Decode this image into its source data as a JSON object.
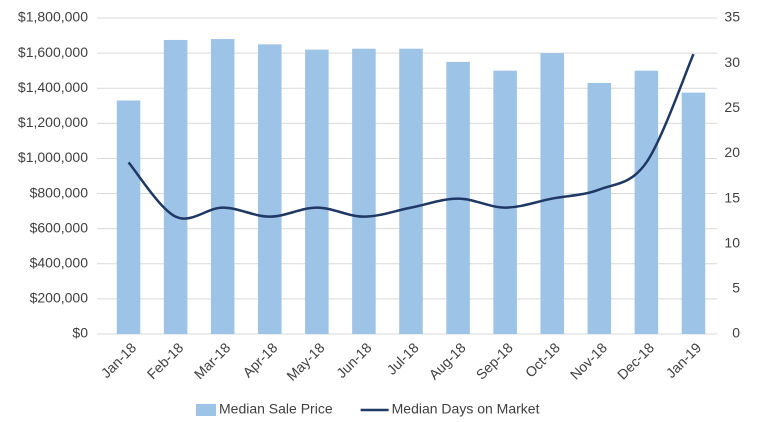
{
  "chart_data": {
    "type": "bar",
    "categories": [
      "Jan-18",
      "Feb-18",
      "Mar-18",
      "Apr-18",
      "May-18",
      "Jun-18",
      "Jul-18",
      "Aug-18",
      "Sep-18",
      "Oct-18",
      "Nov-18",
      "Dec-18",
      "Jan-19"
    ],
    "series": [
      {
        "name": "Median Sale Price",
        "color": "#9dc3e6",
        "type": "bar",
        "values": [
          1330000,
          1675000,
          1680000,
          1650000,
          1620000,
          1625000,
          1625000,
          1550000,
          1500000,
          1600000,
          1430000,
          1500000,
          1375000
        ]
      },
      {
        "name": "Median Days on Market",
        "color": "#1f3864",
        "type": "line",
        "axis": "y2",
        "values": [
          19,
          13,
          14,
          13,
          14,
          13,
          14,
          15,
          14,
          15,
          16,
          19,
          31
        ]
      }
    ],
    "ylim": [
      0,
      1800000
    ],
    "yticks": [
      {
        "value": 0,
        "label": "$0"
      },
      {
        "value": 200000,
        "label": "$200,000"
      },
      {
        "value": 400000,
        "label": "$400,000"
      },
      {
        "value": 600000,
        "label": "$600,000"
      },
      {
        "value": 800000,
        "label": "$800,000"
      },
      {
        "value": 1000000,
        "label": "$1,000,000"
      },
      {
        "value": 1200000,
        "label": "$1,200,000"
      },
      {
        "value": 1400000,
        "label": "$1,400,000"
      },
      {
        "value": 1600000,
        "label": "$1,600,000"
      },
      {
        "value": 1800000,
        "label": "$1,800,000"
      }
    ],
    "y2lim": [
      0,
      35
    ],
    "y2ticks": [
      0,
      5,
      10,
      15,
      20,
      25,
      30,
      35
    ],
    "grid": true,
    "legend": "bottom"
  }
}
